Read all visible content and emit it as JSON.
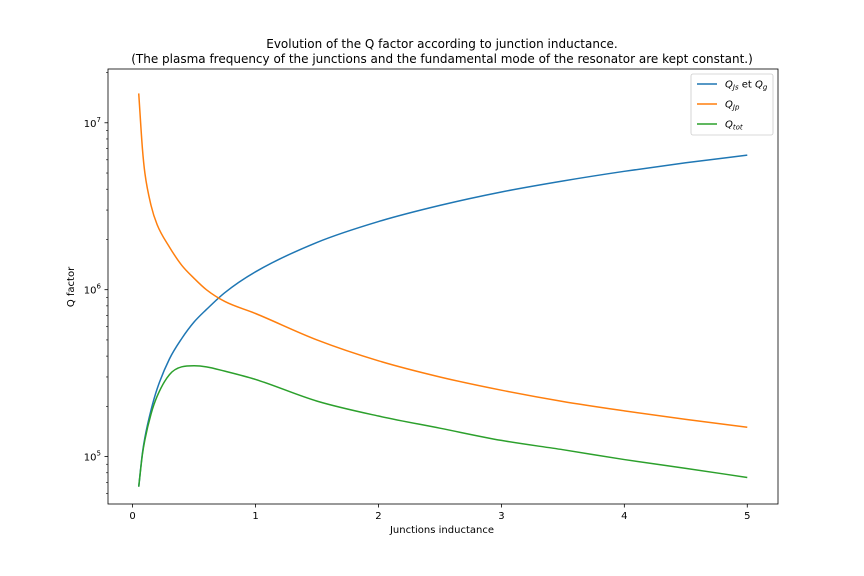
{
  "chart_data": {
    "type": "line",
    "title": "Evolution of the Q factor according to junction inductance.",
    "subtitle": "(The plasma frequency of the junctions and the fundamental mode of the resonator are kept constant.)",
    "xlabel": "Junctions inductance",
    "ylabel": "Q factor",
    "x_scale": "linear",
    "y_scale": "log",
    "xlim": [
      -0.2,
      5.25
    ],
    "ylim": [
      52000,
      21000000
    ],
    "x_ticks": [
      0,
      1,
      2,
      3,
      4,
      5
    ],
    "x_tick_labels": [
      "0",
      "1",
      "2",
      "3",
      "4",
      "5"
    ],
    "y_ticks": [
      100000,
      1000000,
      10000000
    ],
    "y_tick_labels": [
      "10",
      "10",
      "10"
    ],
    "y_tick_exponents": [
      "5",
      "6",
      "7"
    ],
    "grid": false,
    "legend_placement": "top-right",
    "series": [
      {
        "name": "Q_Js et Q_g",
        "legend_parts": [
          "Q",
          "Js",
          " et ",
          "Q",
          "g"
        ],
        "color": "#1f77b4",
        "x": [
          0.05,
          0.08,
          0.1,
          0.15,
          0.2,
          0.3,
          0.4,
          0.5,
          0.6,
          0.75,
          1.0,
          1.5,
          2.0,
          2.5,
          3.0,
          3.5,
          4.0,
          4.5,
          5.0
        ],
        "y": [
          66000,
          105000,
          130000,
          190000,
          255000,
          385000,
          510000,
          640000,
          760000,
          960000,
          1280000,
          1920000,
          2560000,
          3200000,
          3850000,
          4480000,
          5120000,
          5760000,
          6400000
        ]
      },
      {
        "name": "Q_Jp",
        "legend_parts": [
          "Q",
          "Jp"
        ],
        "color": "#ff7f0e",
        "x": [
          0.05,
          0.08,
          0.1,
          0.15,
          0.2,
          0.3,
          0.4,
          0.5,
          0.6,
          0.75,
          1.0,
          1.5,
          2.0,
          2.5,
          3.0,
          3.5,
          4.0,
          4.5,
          5.0
        ],
        "y": [
          15000000,
          7000000,
          5000000,
          3200000,
          2450000,
          1800000,
          1400000,
          1170000,
          1000000,
          850000,
          720000,
          500000,
          375000,
          300000,
          250000,
          214000,
          188000,
          167000,
          150000
        ]
      },
      {
        "name": "Q_tot",
        "legend_parts": [
          "Q",
          "tot"
        ],
        "color": "#2ca02c",
        "x": [
          0.05,
          0.08,
          0.1,
          0.15,
          0.2,
          0.3,
          0.4,
          0.5,
          0.6,
          0.75,
          1.0,
          1.5,
          2.0,
          2.5,
          3.0,
          3.5,
          4.0,
          4.5,
          5.0
        ],
        "y": [
          66000,
          103000,
          126000,
          180000,
          230000,
          310000,
          345000,
          350000,
          345000,
          325000,
          290000,
          215000,
          175000,
          148000,
          125000,
          110000,
          96000,
          85000,
          75000
        ]
      }
    ]
  }
}
